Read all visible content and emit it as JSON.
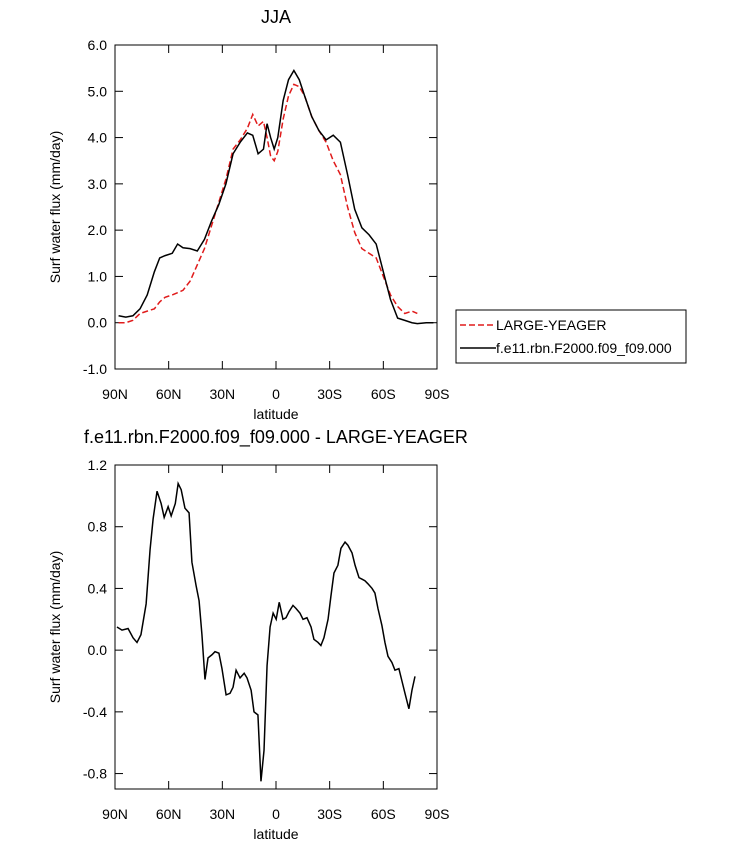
{
  "chart_data": [
    {
      "type": "line",
      "title": "JJA",
      "xlabel": "latitude",
      "ylabel": "Surf water flux (mm/day)",
      "x": [
        88,
        84,
        80,
        76,
        72,
        68,
        65,
        62,
        58,
        55,
        52,
        48,
        44,
        40,
        36,
        32,
        28,
        24,
        20,
        16,
        13,
        10,
        7,
        5,
        3,
        1,
        -1,
        -4,
        -7,
        -10,
        -13,
        -16,
        -20,
        -24,
        -28,
        -32,
        -36,
        -40,
        -44,
        -48,
        -52,
        -56,
        -60,
        -64,
        -68,
        -72,
        -76,
        -79,
        -84,
        -88
      ],
      "series": [
        {
          "name": "LARGE-YEAGER",
          "color": "#e01b1b",
          "dash": "dashed",
          "values": [
            0,
            0,
            0.05,
            0.2,
            0.25,
            0.3,
            0.45,
            0.55,
            0.6,
            0.65,
            0.7,
            0.9,
            1.25,
            1.6,
            2.1,
            2.6,
            3.1,
            3.75,
            3.95,
            4.2,
            4.5,
            4.25,
            4.35,
            4.0,
            3.6,
            3.5,
            3.7,
            4.4,
            4.9,
            5.15,
            5.1,
            4.9,
            4.45,
            4.15,
            3.9,
            3.5,
            3.2,
            2.5,
            1.95,
            1.6,
            1.5,
            1.4,
            1.0,
            0.6,
            0.35,
            0.2,
            0.25,
            0.2,
            null,
            null
          ]
        },
        {
          "name": "f.e11.rbn.F2000.f09_f09.000",
          "color": "#000000",
          "dash": "solid",
          "values": [
            0.15,
            0.12,
            0.15,
            0.3,
            0.6,
            1.1,
            1.4,
            1.45,
            1.5,
            1.7,
            1.62,
            1.6,
            1.55,
            1.8,
            2.2,
            2.55,
            3.0,
            3.65,
            3.9,
            4.1,
            4.05,
            3.65,
            3.75,
            4.3,
            4.0,
            3.75,
            4.0,
            4.8,
            5.25,
            5.45,
            5.25,
            4.9,
            4.45,
            4.15,
            3.95,
            4.05,
            3.9,
            3.2,
            2.45,
            2.05,
            1.9,
            1.7,
            1.1,
            0.5,
            0.1,
            0.05,
            0.0,
            -0.02,
            0.0,
            0.0
          ]
        }
      ],
      "xlim": [
        90,
        -90
      ],
      "xticks": [
        {
          "value": 90,
          "label": "90N"
        },
        {
          "value": 60,
          "label": "60N"
        },
        {
          "value": 30,
          "label": "30N"
        },
        0,
        {
          "value": -30,
          "label": "30S"
        },
        {
          "value": -60,
          "label": "60S"
        },
        {
          "value": -90,
          "label": "90S"
        }
      ],
      "ylim": [
        -1,
        6
      ],
      "yticks": [
        {
          "value": -1,
          "label": "-1.0"
        },
        {
          "value": 0,
          "label": "0.0"
        },
        {
          "value": 1,
          "label": "1.0"
        },
        {
          "value": 2,
          "label": "2.0"
        },
        {
          "value": 3,
          "label": "3.0"
        },
        {
          "value": 4,
          "label": "4.0"
        },
        {
          "value": 5,
          "label": "5.0"
        },
        {
          "value": 6,
          "label": "6.0"
        }
      ],
      "legend": "outside-right"
    },
    {
      "type": "line",
      "title": "f.e11.rbn.F2000.f09_f09.000 - LARGE-YEAGER",
      "xlabel": "latitude",
      "ylabel": "Surf water flux (mm/day)",
      "x": [
        88.9,
        86.1,
        82.7,
        79.9,
        77.7,
        75.5,
        72.6,
        70.4,
        68.7,
        66.5,
        64.2,
        62.5,
        60.3,
        58.6,
        56.3,
        54.7,
        53.0,
        50.9,
        48.6,
        47.0,
        44.7,
        43.0,
        41.4,
        39.7,
        38.0,
        35.8,
        34.1,
        31.9,
        30.2,
        27.9,
        25.7,
        24.0,
        22.3,
        20.1,
        17.8,
        16.2,
        13.9,
        12.3,
        10.1,
        8.4,
        6.7,
        5.0,
        3.3,
        1.6,
        -0.1,
        -1.8,
        -3.9,
        -5.6,
        -7.3,
        -9.5,
        -11.2,
        -13.4,
        -15.1,
        -17.3,
        -19.6,
        -21.2,
        -23.5,
        -25.1,
        -26.8,
        -29.1,
        -30.7,
        -32.4,
        -34.6,
        -36.3,
        -38.6,
        -40.2,
        -42.5,
        -44.2,
        -46.4,
        -48.1,
        -49.7,
        -51.4,
        -53.7,
        -55.3,
        -57.0,
        -59.2,
        -60.9,
        -62.6,
        -64.8,
        -66.5,
        -68.7,
        -70.4,
        -72.1,
        -74.3,
        -76.0,
        -77.7
      ],
      "color": "#000000",
      "values": [
        0.15,
        0.13,
        0.14,
        0.08,
        0.05,
        0.1,
        0.3,
        0.65,
        0.85,
        1.03,
        0.95,
        0.86,
        0.93,
        0.87,
        0.95,
        1.08,
        1.04,
        0.92,
        0.89,
        0.57,
        0.42,
        0.32,
        0.1,
        -0.19,
        -0.05,
        -0.03,
        -0.01,
        -0.02,
        -0.12,
        -0.29,
        -0.28,
        -0.24,
        -0.13,
        -0.18,
        -0.15,
        -0.18,
        -0.26,
        -0.4,
        -0.42,
        -0.85,
        -0.65,
        -0.1,
        0.15,
        0.24,
        0.2,
        0.31,
        0.2,
        0.21,
        0.25,
        0.29,
        0.27,
        0.24,
        0.2,
        0.21,
        0.15,
        0.07,
        0.05,
        0.03,
        0.08,
        0.2,
        0.35,
        0.5,
        0.55,
        0.66,
        0.7,
        0.68,
        0.63,
        0.55,
        0.47,
        0.46,
        0.45,
        0.43,
        0.4,
        0.37,
        0.27,
        0.16,
        0.05,
        -0.04,
        -0.08,
        -0.13,
        -0.12,
        -0.2,
        -0.28,
        -0.38,
        -0.26,
        -0.17
      ],
      "xlim": [
        90,
        -90
      ],
      "xticks": [
        {
          "value": 90,
          "label": "90N"
        },
        {
          "value": 60,
          "label": "60N"
        },
        {
          "value": 30,
          "label": "30N"
        },
        0,
        {
          "value": -30,
          "label": "30S"
        },
        {
          "value": -60,
          "label": "60S"
        },
        {
          "value": -90,
          "label": "90S"
        }
      ],
      "ylim": [
        -0.9,
        1.2
      ],
      "yticks": [
        -0.8,
        -0.4,
        {
          "value": 0,
          "label": "0.0"
        },
        0.4,
        0.8,
        1.2
      ]
    }
  ]
}
